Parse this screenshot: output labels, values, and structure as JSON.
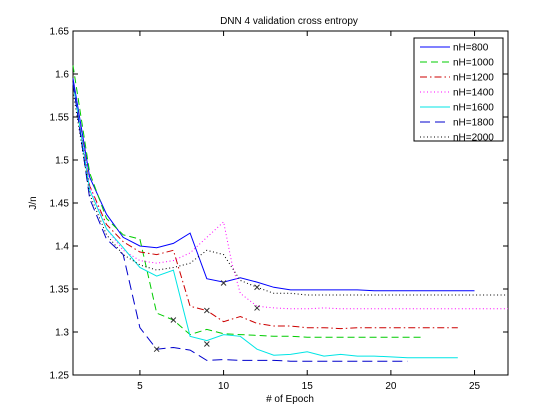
{
  "chart_data": {
    "type": "line",
    "title": "DNN 4 validation cross entropy",
    "xlabel": "# of Epoch",
    "ylabel": "J/n",
    "xlim": [
      1,
      27
    ],
    "ylim": [
      1.25,
      1.65
    ],
    "xticks": [
      5,
      10,
      15,
      20,
      25
    ],
    "yticks": [
      1.25,
      1.3,
      1.35,
      1.4,
      1.45,
      1.5,
      1.55,
      1.6,
      1.65
    ],
    "grid": false,
    "legend_position": "top-right",
    "series": [
      {
        "name": "nH=800",
        "color": "#0000ff",
        "dash": "solid",
        "x": [
          1,
          2,
          3,
          4,
          5,
          6,
          7,
          8,
          9,
          10,
          11,
          12,
          13,
          14,
          15,
          16,
          17,
          18,
          19,
          20,
          21,
          22,
          23,
          24,
          25
        ],
        "y": [
          1.595,
          1.48,
          1.437,
          1.41,
          1.4,
          1.398,
          1.403,
          1.415,
          1.362,
          1.358,
          1.363,
          1.358,
          1.352,
          1.349,
          1.349,
          1.349,
          1.349,
          1.349,
          1.348,
          1.348,
          1.348,
          1.348,
          1.348,
          1.348,
          1.348
        ],
        "marker": {
          "x": 10,
          "y": 1.357
        }
      },
      {
        "name": "nH=1000",
        "color": "#00cc00",
        "dash": "dashed",
        "x": [
          1,
          2,
          3,
          4,
          5,
          6,
          7,
          8,
          9,
          10,
          11,
          12,
          13,
          14,
          15,
          16,
          17,
          18,
          19,
          20,
          21,
          22
        ],
        "y": [
          1.61,
          1.485,
          1.432,
          1.413,
          1.408,
          1.322,
          1.314,
          1.297,
          1.303,
          1.298,
          1.297,
          1.296,
          1.295,
          1.295,
          1.294,
          1.294,
          1.294,
          1.294,
          1.294,
          1.294,
          1.294,
          1.294
        ],
        "marker": {
          "x": 7,
          "y": 1.314
        }
      },
      {
        "name": "nH=1200",
        "color": "#cc0000",
        "dash": "dashdot",
        "x": [
          1,
          2,
          3,
          4,
          5,
          6,
          7,
          8,
          9,
          10,
          11,
          12,
          13,
          14,
          15,
          16,
          17,
          18,
          19,
          20,
          21,
          22,
          23,
          24
        ],
        "y": [
          1.59,
          1.47,
          1.425,
          1.405,
          1.393,
          1.39,
          1.395,
          1.33,
          1.325,
          1.312,
          1.318,
          1.31,
          1.307,
          1.307,
          1.305,
          1.305,
          1.304,
          1.305,
          1.305,
          1.305,
          1.305,
          1.305,
          1.305,
          1.305
        ],
        "marker": {
          "x": 9,
          "y": 1.325
        }
      },
      {
        "name": "nH=1400",
        "color": "#ff00ff",
        "dash": "dotted",
        "x": [
          1,
          2,
          3,
          4,
          5,
          6,
          7,
          8,
          9,
          10,
          10.5,
          11,
          12,
          13,
          14,
          15,
          16,
          17,
          18,
          19,
          20,
          21,
          22,
          23,
          24,
          25,
          26,
          27
        ],
        "y": [
          1.59,
          1.47,
          1.42,
          1.395,
          1.383,
          1.38,
          1.383,
          1.392,
          1.41,
          1.428,
          1.38,
          1.345,
          1.33,
          1.328,
          1.327,
          1.327,
          1.328,
          1.327,
          1.327,
          1.327,
          1.327,
          1.327,
          1.327,
          1.327,
          1.327,
          1.327,
          1.327,
          1.327
        ],
        "marker": {
          "x": 12,
          "y": 1.328
        }
      },
      {
        "name": "nH=1600",
        "color": "#00e5e5",
        "dash": "solid",
        "x": [
          1,
          2,
          3,
          4,
          5,
          6,
          7,
          8,
          9,
          10,
          11,
          12,
          13,
          14,
          15,
          16,
          17,
          18,
          19,
          20,
          21,
          22,
          23,
          24
        ],
        "y": [
          1.59,
          1.465,
          1.42,
          1.398,
          1.375,
          1.365,
          1.372,
          1.295,
          1.29,
          1.297,
          1.295,
          1.28,
          1.273,
          1.274,
          1.277,
          1.272,
          1.274,
          1.272,
          1.272,
          1.271,
          1.27,
          1.27,
          1.27,
          1.27
        ],
        "marker": {
          "x": 9,
          "y": 1.286
        }
      },
      {
        "name": "nH=1800",
        "color": "#0000cc",
        "dash": "longdash",
        "x": [
          1,
          2,
          3,
          4,
          5,
          6,
          7,
          8,
          9,
          10,
          11,
          12,
          13,
          14,
          15,
          16,
          17,
          18,
          19,
          20,
          21
        ],
        "y": [
          1.59,
          1.455,
          1.408,
          1.39,
          1.305,
          1.28,
          1.282,
          1.279,
          1.267,
          1.268,
          1.267,
          1.267,
          1.267,
          1.266,
          1.266,
          1.266,
          1.266,
          1.266,
          1.266,
          1.266,
          1.266
        ],
        "marker": {
          "x": 6,
          "y": 1.28
        }
      },
      {
        "name": "nH=2000",
        "color": "#000000",
        "dash": "dotted",
        "x": [
          1,
          2,
          3,
          4,
          5,
          6,
          7,
          8,
          9,
          10,
          11,
          12,
          13,
          14,
          15,
          16,
          17,
          18,
          19,
          20,
          21,
          22,
          23,
          24,
          25,
          26,
          27
        ],
        "y": [
          1.58,
          1.46,
          1.413,
          1.39,
          1.378,
          1.372,
          1.375,
          1.38,
          1.395,
          1.39,
          1.36,
          1.352,
          1.345,
          1.345,
          1.343,
          1.343,
          1.343,
          1.343,
          1.343,
          1.343,
          1.343,
          1.343,
          1.343,
          1.343,
          1.343,
          1.343,
          1.343
        ],
        "marker": {
          "x": 12,
          "y": 1.352
        }
      }
    ]
  }
}
